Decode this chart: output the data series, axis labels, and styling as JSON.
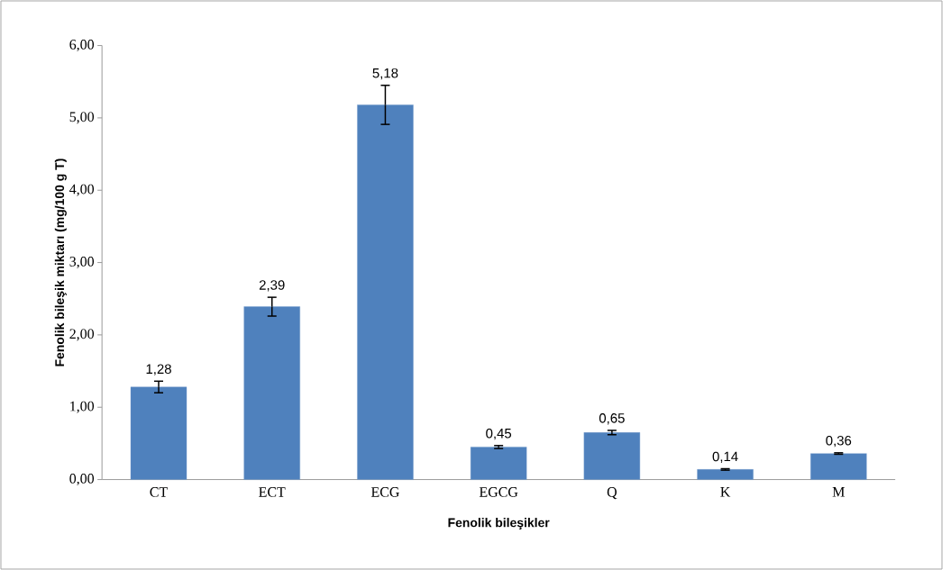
{
  "chart_data": {
    "type": "bar",
    "xlabel": "Fenolik bileşikler",
    "ylabel": "Fenolik bileşik miktarı (mg/100 g T)",
    "categories": [
      "CT",
      "ECT",
      "ECG",
      "EGCG",
      "Q",
      "K",
      "M"
    ],
    "values": [
      1.28,
      2.39,
      5.18,
      0.45,
      0.65,
      0.14,
      0.36
    ],
    "errors": [
      0.08,
      0.13,
      0.27,
      0.02,
      0.03,
      0.01,
      0.01
    ],
    "value_labels": [
      "1,28",
      "2,39",
      "5,18",
      "0,45",
      "0,65",
      "0,14",
      "0,36"
    ],
    "color": "#4f81bd",
    "ylim": [
      0,
      6
    ],
    "yticks": [
      {
        "value": 0,
        "label": "0,00"
      },
      {
        "value": 1,
        "label": "1,00"
      },
      {
        "value": 2,
        "label": "2,00"
      },
      {
        "value": 3,
        "label": "3,00"
      },
      {
        "value": 4,
        "label": "4,00"
      },
      {
        "value": 5,
        "label": "5,00"
      },
      {
        "value": 6,
        "label": "6,00"
      }
    ],
    "grid": false
  }
}
